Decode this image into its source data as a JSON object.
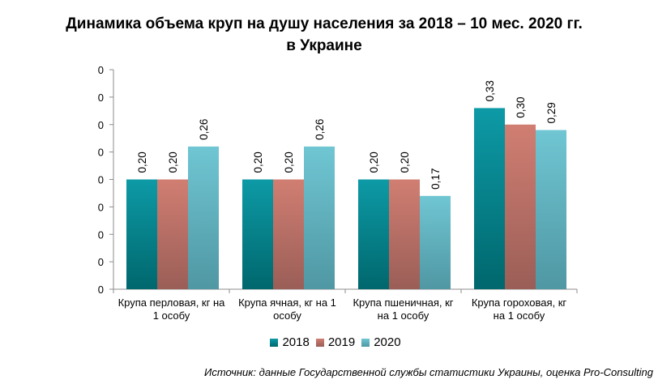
{
  "title_line1": "Динамика объема круп на душу населения за 2018 – 10 мес. 2020 гг.",
  "title_line2": "в Украине",
  "source": "Источник: данные Государственной службы статистики Украины, оценка Pro-Consulting",
  "colors": {
    "s2018_top": "#0d9aa6",
    "s2018_bottom": "#00676d",
    "s2019_top": "#d17e72",
    "s2019_bottom": "#9a5e57",
    "s2020_top": "#70c6d3",
    "s2020_bottom": "#4f97a3",
    "axis": "#8c8c8c"
  },
  "chart_data": {
    "type": "bar",
    "categories": [
      "Крупа перловая, кг на 1 особу",
      "Крупа ячная, кг на 1 особу",
      "Крупа пшеничная, кг на 1 особу",
      "Крупа гороховая, кг на 1 особу"
    ],
    "category_lines": [
      [
        "Крупа перловая, кг на",
        "1 особу"
      ],
      [
        "Крупа ячная, кг на 1",
        "особу"
      ],
      [
        "Крупа пшеничная, кг",
        "на 1 особу"
      ],
      [
        "Крупа гороховая, кг",
        "на 1 особу"
      ]
    ],
    "series": [
      {
        "name": "2018",
        "values": [
          0.2,
          0.2,
          0.2,
          0.33
        ],
        "labels": [
          "0,20",
          "0,20",
          "0,20",
          "0,33"
        ]
      },
      {
        "name": "2019",
        "values": [
          0.2,
          0.2,
          0.2,
          0.3
        ],
        "labels": [
          "0,20",
          "0,20",
          "0,20",
          "0,30"
        ]
      },
      {
        "name": "2020",
        "values": [
          0.26,
          0.26,
          0.17,
          0.29
        ],
        "labels": [
          "0,26",
          "0,26",
          "0,17",
          "0,29"
        ]
      }
    ],
    "ytick_labels": [
      "0",
      "0",
      "0",
      "0",
      "0",
      "0",
      "0",
      "0",
      "0"
    ],
    "yticks": [
      0,
      0.05,
      0.1,
      0.15,
      0.2,
      0.25,
      0.3,
      0.35,
      0.4
    ],
    "ylim": [
      0,
      0.4
    ],
    "legend_position": "bottom",
    "grid": false
  }
}
